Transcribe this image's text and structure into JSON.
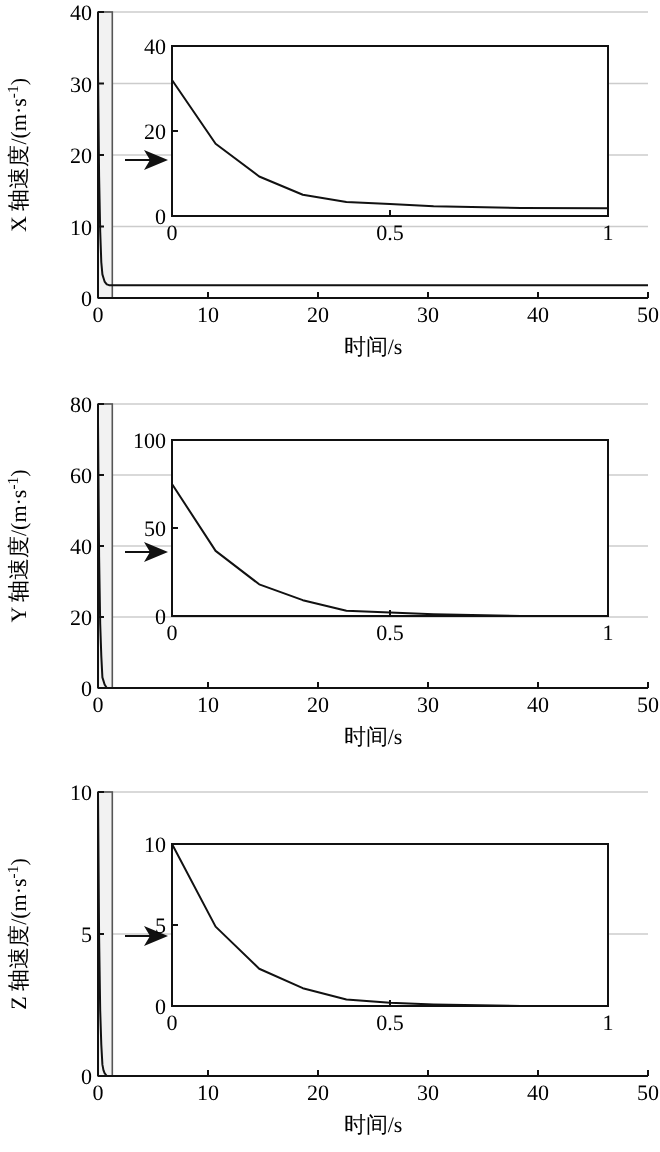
{
  "chart_data": [
    {
      "type": "line",
      "xlabel": "时间/s",
      "ylabel": "X 轴速度/(m·s$^{-1}$)",
      "x": [
        0,
        0.1,
        0.2,
        0.3,
        0.4,
        0.5,
        0.6,
        0.8,
        1,
        50
      ],
      "values": [
        32,
        17,
        9.3,
        5,
        3.3,
        2.8,
        2.3,
        1.9,
        1.8,
        1.8
      ],
      "color": "#111111",
      "xlim": [
        0,
        50
      ],
      "xticks": [
        0,
        10,
        20,
        30,
        40,
        50
      ],
      "ylim": [
        0,
        40
      ],
      "yticks": [
        0,
        10,
        20,
        30,
        40
      ],
      "grid": "y",
      "bands": [
        {
          "axis": "x",
          "from": 0,
          "to": 1.3,
          "color": "#f2f2f2"
        }
      ]
    },
    {
      "type": "line",
      "x": [
        0,
        0.1,
        0.2,
        0.3,
        0.4,
        0.5,
        0.6,
        0.8,
        1
      ],
      "values": [
        32,
        17,
        9.3,
        5,
        3.3,
        2.8,
        2.3,
        1.9,
        1.8
      ],
      "color": "#111111",
      "xlim": [
        0,
        1
      ],
      "xticks": [
        0,
        0.5,
        1
      ],
      "ylim": [
        0,
        40
      ],
      "yticks": [
        0,
        20,
        40
      ]
    },
    {
      "type": "line",
      "xlabel": "时间/s",
      "ylabel": "Y 轴速度/(m·s$^{-1}$)",
      "x": [
        0,
        0.1,
        0.2,
        0.3,
        0.4,
        0.5,
        0.6,
        0.8,
        1,
        50
      ],
      "values": [
        75,
        37,
        18,
        9,
        3,
        2,
        1,
        0,
        0,
        0
      ],
      "color": "#111111",
      "xlim": [
        0,
        50
      ],
      "xticks": [
        0,
        10,
        20,
        30,
        40,
        50
      ],
      "ylim": [
        0,
        80
      ],
      "yticks": [
        0,
        20,
        40,
        60,
        80
      ],
      "grid": "y",
      "bands": [
        {
          "axis": "x",
          "from": 0,
          "to": 1.3,
          "color": "#f2f2f2"
        }
      ]
    },
    {
      "type": "line",
      "x": [
        0,
        0.1,
        0.2,
        0.3,
        0.4,
        0.5,
        0.6,
        0.8,
        1
      ],
      "values": [
        75,
        37,
        18,
        9,
        3,
        2,
        1,
        0,
        0
      ],
      "color": "#111111",
      "xlim": [
        0,
        1
      ],
      "xticks": [
        0,
        0.5,
        1
      ],
      "ylim": [
        0,
        100
      ],
      "yticks": [
        0,
        50,
        100
      ]
    },
    {
      "type": "line",
      "xlabel": "时间/s",
      "ylabel": "Z 轴速度/(m·s$^{-1}$)",
      "x": [
        0,
        0.1,
        0.2,
        0.3,
        0.4,
        0.5,
        0.6,
        0.8,
        1,
        50
      ],
      "values": [
        10,
        4.9,
        2.3,
        1.1,
        0.4,
        0.2,
        0.1,
        0,
        0,
        0
      ],
      "color": "#111111",
      "xlim": [
        0,
        50
      ],
      "xticks": [
        0,
        10,
        20,
        30,
        40,
        50
      ],
      "ylim": [
        0,
        10
      ],
      "yticks": [
        0,
        5,
        10
      ],
      "grid": "y",
      "bands": [
        {
          "axis": "x",
          "from": 0,
          "to": 1.3,
          "color": "#f2f2f2"
        }
      ]
    },
    {
      "type": "line",
      "x": [
        0,
        0.1,
        0.2,
        0.3,
        0.4,
        0.5,
        0.6,
        0.8,
        1
      ],
      "values": [
        10,
        4.9,
        2.3,
        1.1,
        0.4,
        0.2,
        0.1,
        0,
        0
      ],
      "color": "#111111",
      "xlim": [
        0,
        1
      ],
      "xticks": [
        0,
        0.5,
        1
      ],
      "ylim": [
        0,
        10
      ],
      "yticks": [
        0,
        5,
        10
      ]
    }
  ]
}
